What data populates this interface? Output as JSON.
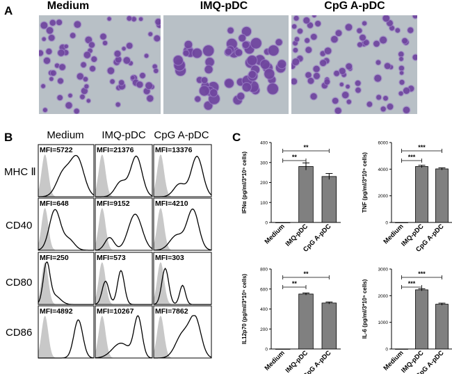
{
  "panels": {
    "a": "A",
    "b": "B",
    "c": "C"
  },
  "panel_a": {
    "titles": [
      "Medium",
      "IMQ-pDC",
      "CpG A-pDC"
    ],
    "colors": {
      "background": "#b8c0c6",
      "cell": "#6b3f9a",
      "cell_light": "#9a7fc4"
    }
  },
  "panel_b": {
    "columns": [
      "Medium",
      "IMQ-pDC",
      "CpG A-pDC"
    ],
    "rows": [
      {
        "marker": "MHC Ⅱ",
        "mfi": [
          "MFI=5722",
          "MFI=21376",
          "MFI=13376"
        ]
      },
      {
        "marker": "CD40",
        "mfi": [
          "MFI=648",
          "MFI=9152",
          "MFI=4210"
        ]
      },
      {
        "marker": "CD80",
        "mfi": [
          "MFI=250",
          "MFI=573",
          "MFI=303"
        ]
      },
      {
        "marker": "CD86",
        "mfi": [
          "MFI=4892",
          "MFI=10267",
          "MFI=7862"
        ]
      }
    ],
    "colors": {
      "isotype_fill": "#c8c8c8",
      "stain_line": "#000000"
    }
  },
  "chart_data": [
    {
      "type": "bar",
      "categories": [
        "Medium",
        "IMQ-pDC",
        "CpG A-pDC"
      ],
      "values": [
        0,
        280,
        230
      ],
      "errors": [
        0,
        18,
        15
      ],
      "ylabel": "IFNα (pg/ml/3*10⁵ cells)",
      "ylim": [
        0,
        400
      ],
      "yticks": [
        0,
        100,
        200,
        300,
        400
      ],
      "significance": [
        {
          "from": 0,
          "to": 1,
          "label": "**"
        },
        {
          "from": 0,
          "to": 2,
          "label": "**"
        }
      ],
      "bar_color": "#808080"
    },
    {
      "type": "bar",
      "categories": [
        "Medium",
        "IMQ-pDC",
        "CpG A-pDC"
      ],
      "values": [
        0,
        4200,
        4020
      ],
      "errors": [
        0,
        90,
        80
      ],
      "ylabel": "TNF (pg/ml/3*10⁵ cells)",
      "ylim": [
        0,
        6000
      ],
      "yticks": [
        0,
        2000,
        4000,
        6000
      ],
      "significance": [
        {
          "from": 0,
          "to": 1,
          "label": "***"
        },
        {
          "from": 0,
          "to": 2,
          "label": "***"
        }
      ],
      "bar_color": "#808080"
    },
    {
      "type": "bar",
      "categories": [
        "Medium",
        "IMQ-pDC",
        "CpG A-pDC"
      ],
      "values": [
        0,
        550,
        460
      ],
      "errors": [
        0,
        10,
        10
      ],
      "ylabel": "IL12p70 (pg/ml/3*10⁵ cells)",
      "ylim": [
        0,
        800
      ],
      "yticks": [
        0,
        200,
        400,
        600,
        800
      ],
      "significance": [
        {
          "from": 0,
          "to": 1,
          "label": "**"
        },
        {
          "from": 0,
          "to": 2,
          "label": "**"
        }
      ],
      "bar_color": "#808080"
    },
    {
      "type": "bar",
      "categories": [
        "Medium",
        "IMQ-pDC",
        "CpG A-pDC"
      ],
      "values": [
        0,
        2220,
        1680
      ],
      "errors": [
        0,
        40,
        40
      ],
      "ylabel": "IL-6 (pg/ml/3*10⁵ cells)",
      "ylim": [
        0,
        3000
      ],
      "yticks": [
        0,
        1000,
        2000,
        3000
      ],
      "significance": [
        {
          "from": 0,
          "to": 1,
          "label": "***"
        },
        {
          "from": 0,
          "to": 2,
          "label": "***"
        }
      ],
      "bar_color": "#808080"
    }
  ]
}
